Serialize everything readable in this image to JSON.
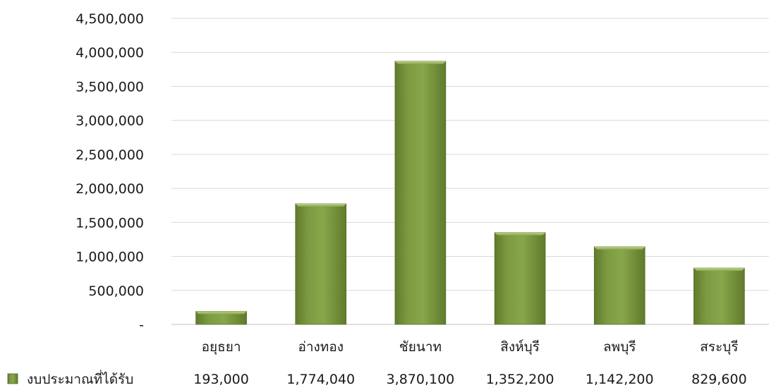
{
  "chart_data": {
    "type": "bar",
    "categories": [
      "อยุธยา",
      "อ่างทอง",
      "ชัยนาท",
      "สิงห์บุรี",
      "ลพบุรี",
      "สระบุรี"
    ],
    "series": [
      {
        "name": "งบประมาณที่ได้รับ",
        "values": [
          193000,
          1774040,
          3870100,
          1352200,
          1142200,
          829600
        ],
        "value_labels": [
          "193,000",
          "1,774,040",
          "3,870,100",
          "1,352,200",
          "1,142,200",
          "829,600"
        ],
        "color": "#77933c"
      }
    ],
    "ylim": [
      0,
      4500000
    ],
    "yticks": [
      0,
      500000,
      1000000,
      1500000,
      2000000,
      2500000,
      3000000,
      3500000,
      4000000,
      4500000
    ],
    "ytick_labels": [
      "-",
      "500,000",
      "1,000,000",
      "1,500,000",
      "2,000,000",
      "2,500,000",
      "3,000,000",
      "3,500,000",
      "4,000,000",
      "4,500,000"
    ],
    "grid": true,
    "legend": "data-table-left",
    "title": "",
    "xlabel": "",
    "ylabel": ""
  }
}
